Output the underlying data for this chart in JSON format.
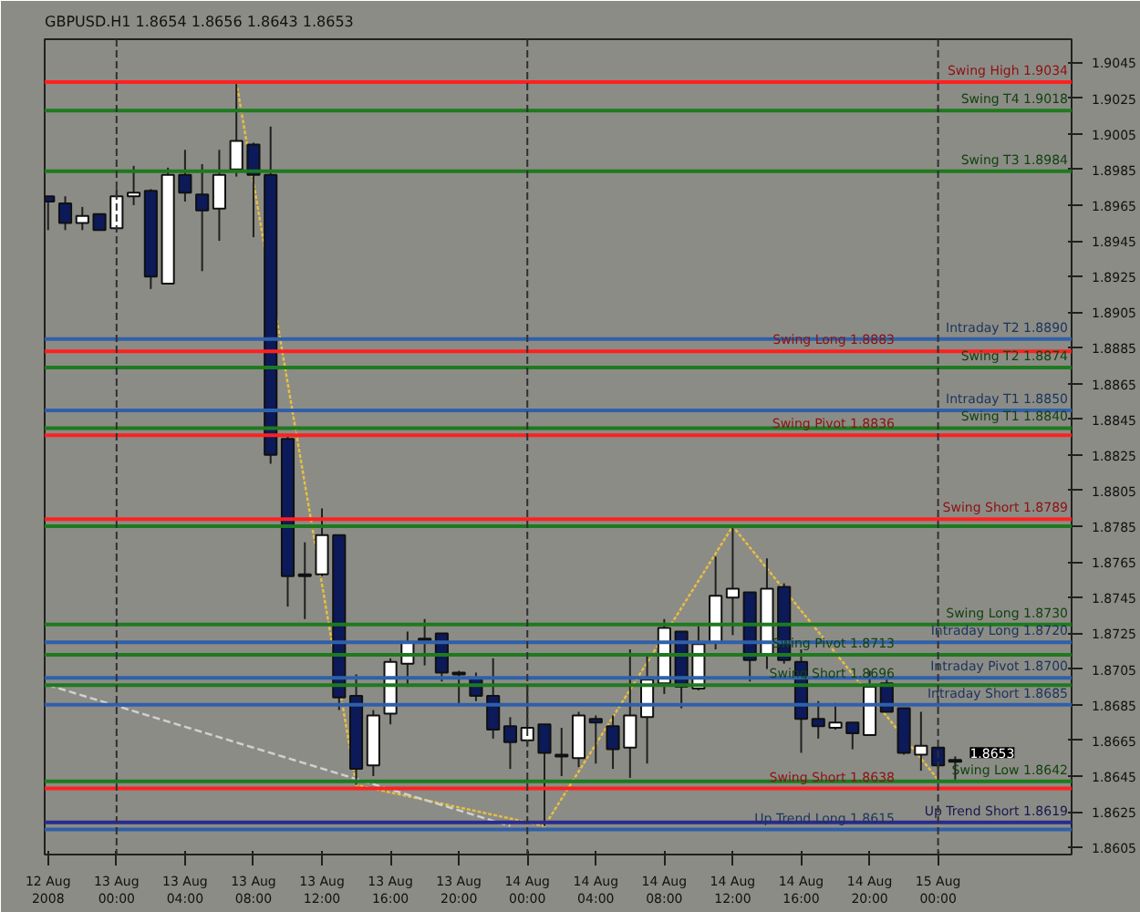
{
  "chart_data": {
    "type": "candlestick",
    "title": "GBPUSD.H1 1.8654 1.8656 1.8643 1.8653",
    "x": [
      "2008-08-12T20:00",
      "2008-08-12T21:00",
      "2008-08-12T22:00",
      "2008-08-12T23:00",
      "2008-08-13T00:00",
      "2008-08-13T01:00",
      "2008-08-13T02:00",
      "2008-08-13T03:00",
      "2008-08-13T04:00",
      "2008-08-13T05:00",
      "2008-08-13T06:00",
      "2008-08-13T07:00",
      "2008-08-13T08:00",
      "2008-08-13T09:00",
      "2008-08-13T10:00",
      "2008-08-13T11:00",
      "2008-08-13T12:00",
      "2008-08-13T13:00",
      "2008-08-13T14:00",
      "2008-08-13T15:00",
      "2008-08-13T16:00",
      "2008-08-13T17:00",
      "2008-08-13T18:00",
      "2008-08-13T19:00",
      "2008-08-13T20:00",
      "2008-08-13T21:00",
      "2008-08-13T22:00",
      "2008-08-13T23:00",
      "2008-08-14T00:00",
      "2008-08-14T01:00",
      "2008-08-14T02:00",
      "2008-08-14T03:00",
      "2008-08-14T04:00",
      "2008-08-14T05:00",
      "2008-08-14T06:00",
      "2008-08-14T07:00",
      "2008-08-14T08:00",
      "2008-08-14T09:00",
      "2008-08-14T10:00",
      "2008-08-14T11:00",
      "2008-08-14T12:00",
      "2008-08-14T13:00",
      "2008-08-14T14:00",
      "2008-08-14T15:00",
      "2008-08-14T16:00",
      "2008-08-14T17:00",
      "2008-08-14T18:00",
      "2008-08-14T19:00",
      "2008-08-14T20:00",
      "2008-08-14T21:00",
      "2008-08-14T22:00",
      "2008-08-14T23:00",
      "2008-08-15T00:00",
      "2008-08-15T01:00"
    ],
    "ohlc": [
      [
        1.897,
        1.897,
        1.8951,
        1.8967
      ],
      [
        1.8966,
        1.897,
        1.8951,
        1.8955
      ],
      [
        1.8955,
        1.8964,
        1.8951,
        1.8959
      ],
      [
        1.896,
        1.896,
        1.8951,
        1.8951
      ],
      [
        1.8952,
        1.8974,
        1.8951,
        1.897
      ],
      [
        1.897,
        1.8987,
        1.8965,
        1.8972
      ],
      [
        1.8973,
        1.8974,
        1.8918,
        1.8925
      ],
      [
        1.8921,
        1.8986,
        1.8921,
        1.8982
      ],
      [
        1.8982,
        1.8996,
        1.8967,
        1.8972
      ],
      [
        1.8971,
        1.8988,
        1.8928,
        1.8962
      ],
      [
        1.8963,
        1.8996,
        1.8945,
        1.8982
      ],
      [
        1.8985,
        1.9034,
        1.8981,
        1.9001
      ],
      [
        1.8999,
        1.9,
        1.8947,
        1.8982
      ],
      [
        1.8982,
        1.9009,
        1.882,
        1.8825
      ],
      [
        1.8834,
        1.8836,
        1.874,
        1.8757
      ],
      [
        1.8758,
        1.8776,
        1.8733,
        1.8757
      ],
      [
        1.8758,
        1.8795,
        1.8757,
        1.878
      ],
      [
        1.878,
        1.878,
        1.8682,
        1.8689
      ],
      [
        1.869,
        1.8702,
        1.864,
        1.8649
      ],
      [
        1.8651,
        1.8682,
        1.8645,
        1.8679
      ],
      [
        1.868,
        1.8711,
        1.8674,
        1.8709
      ],
      [
        1.8708,
        1.8726,
        1.8695,
        1.872
      ],
      [
        1.8722,
        1.8733,
        1.8707,
        1.8721
      ],
      [
        1.8725,
        1.8725,
        1.8698,
        1.8703
      ],
      [
        1.8703,
        1.8704,
        1.8685,
        1.8702
      ],
      [
        1.87,
        1.8703,
        1.8687,
        1.869
      ],
      [
        1.869,
        1.8711,
        1.8666,
        1.8671
      ],
      [
        1.8673,
        1.8678,
        1.8649,
        1.8664
      ],
      [
        1.8665,
        1.8695,
        1.8662,
        1.8672
      ],
      [
        1.8674,
        1.8674,
        1.8617,
        1.8658
      ],
      [
        1.8657,
        1.8672,
        1.8645,
        1.8656
      ],
      [
        1.8655,
        1.8681,
        1.865,
        1.8679
      ],
      [
        1.8677,
        1.8679,
        1.8652,
        1.8675
      ],
      [
        1.8673,
        1.8679,
        1.8649,
        1.866
      ],
      [
        1.8661,
        1.8716,
        1.8644,
        1.8679
      ],
      [
        1.8678,
        1.8713,
        1.8652,
        1.8699
      ],
      [
        1.8697,
        1.8733,
        1.8691,
        1.8728
      ],
      [
        1.8726,
        1.8726,
        1.8683,
        1.8695
      ],
      [
        1.8694,
        1.8729,
        1.8693,
        1.8719
      ],
      [
        1.872,
        1.8768,
        1.8716,
        1.8746
      ],
      [
        1.8745,
        1.8785,
        1.8724,
        1.875
      ],
      [
        1.8748,
        1.8748,
        1.8698,
        1.871
      ],
      [
        1.8713,
        1.8767,
        1.8705,
        1.875
      ],
      [
        1.8751,
        1.8753,
        1.8708,
        1.871
      ],
      [
        1.8709,
        1.8716,
        1.8658,
        1.8677
      ],
      [
        1.8677,
        1.8687,
        1.8666,
        1.8673
      ],
      [
        1.8672,
        1.8686,
        1.8671,
        1.8675
      ],
      [
        1.8675,
        1.8675,
        1.866,
        1.8669
      ],
      [
        1.8668,
        1.8704,
        1.8668,
        1.8695
      ],
      [
        1.8697,
        1.8699,
        1.8681,
        1.8681
      ],
      [
        1.8683,
        1.8683,
        1.8657,
        1.8658
      ],
      [
        1.8657,
        1.8681,
        1.8648,
        1.8662
      ],
      [
        1.8661,
        1.8661,
        1.8643,
        1.8651
      ],
      [
        1.8654,
        1.8656,
        1.8643,
        1.8653
      ]
    ],
    "colors": [
      "#0c1a5a",
      "#0c1a5a",
      "#ffffff",
      "#0c1a5a",
      "#ffffff",
      "#ffffff",
      "#0c1a5a",
      "#ffffff",
      "#0c1a5a",
      "#0c1a5a",
      "#ffffff",
      "#ffffff",
      "#0c1a5a",
      "#0c1a5a",
      "#0c1a5a",
      "#0c1a5a",
      "#ffffff",
      "#0c1a5a",
      "#0c1a5a",
      "#ffffff",
      "#ffffff",
      "#ffffff",
      "#0c1a5a",
      "#0c1a5a",
      "#0c1a5a",
      "#0c1a5a",
      "#0c1a5a",
      "#0c1a5a",
      "#ffffff",
      "#0c1a5a",
      "#0c1a5a",
      "#ffffff",
      "#0c1a5a",
      "#0c1a5a",
      "#ffffff",
      "#ffffff",
      "#ffffff",
      "#0c1a5a",
      "#ffffff",
      "#ffffff",
      "#ffffff",
      "#0c1a5a",
      "#ffffff",
      "#0c1a5a",
      "#0c1a5a",
      "#0c1a5a",
      "#ffffff",
      "#0c1a5a",
      "#ffffff",
      "#0c1a5a",
      "#0c1a5a",
      "#ffffff",
      "#0c1a5a",
      "#0c1a5a"
    ],
    "series": [
      {
        "type": "line",
        "x": [
          "2008-08-13T07:00",
          "2008-08-13T14:00",
          "2008-08-14T01:00",
          "2008-08-14T12:00",
          "2008-08-15T00:00"
        ],
        "values": [
          1.9034,
          1.864,
          1.8617,
          1.8785,
          1.8643
        ],
        "color": "#e8c040",
        "line_style": "dotted"
      },
      {
        "type": "line",
        "x": [
          "2008-08-12T20:00",
          "2008-08-13T23:00"
        ],
        "values": [
          1.8696,
          1.8617
        ],
        "color": "#d0d0d0",
        "line_style": "dashed"
      }
    ],
    "ref_lines": [
      {
        "axis": "y",
        "value": 1.9034,
        "label": "Swing High 1.9034",
        "color": "#ff2020"
      },
      {
        "axis": "y",
        "value": 1.9018,
        "label": "Swing T4 1.9018",
        "color": "#1e7a1e"
      },
      {
        "axis": "y",
        "value": 1.8984,
        "label": "Swing T3 1.8984",
        "color": "#1e7a1e"
      },
      {
        "axis": "y",
        "value": 1.889,
        "label": "Intraday T2 1.8890",
        "color": "#3060a8"
      },
      {
        "axis": "y",
        "value": 1.8883,
        "label": "Swing Long 1.8883",
        "color": "#ff2020"
      },
      {
        "axis": "y",
        "value": 1.8874,
        "label": "Swing T2 1.8874",
        "color": "#1e7a1e"
      },
      {
        "axis": "y",
        "value": 1.885,
        "label": "Intraday T1 1.8850",
        "color": "#3060a8"
      },
      {
        "axis": "y",
        "value": 1.884,
        "label": "Swing T1 1.8840",
        "color": "#1e7a1e"
      },
      {
        "axis": "y",
        "value": 1.8836,
        "label": "Swing Pivot 1.8836",
        "color": "#ff2020"
      },
      {
        "axis": "y",
        "value": 1.8789,
        "label": "Swing Short 1.8789",
        "color": "#ff2020"
      },
      {
        "axis": "y",
        "value": 1.8785,
        "label": null,
        "color": "#1e7a1e"
      },
      {
        "axis": "y",
        "value": 1.873,
        "label": "Swing Long 1.8730",
        "color": "#1e7a1e"
      },
      {
        "axis": "y",
        "value": 1.872,
        "label": "Intraday Long 1.8720",
        "color": "#3060a8"
      },
      {
        "axis": "y",
        "value": 1.8713,
        "label": "Swing Pivot 1.8713",
        "color": "#1e7a1e"
      },
      {
        "axis": "y",
        "value": 1.87,
        "label": "Intraday Pivot 1.8700",
        "color": "#3060a8"
      },
      {
        "axis": "y",
        "value": 1.8696,
        "label": "Swing Short 1.8696",
        "color": "#1e7a1e"
      },
      {
        "axis": "y",
        "value": 1.8685,
        "label": "Intraday Short 1.8685",
        "color": "#3060a8"
      },
      {
        "axis": "y",
        "value": 1.8642,
        "label": "Swing Low 1.8642",
        "color": "#1e7a1e"
      },
      {
        "axis": "y",
        "value": 1.8638,
        "label": "Swing Short 1.8638",
        "color": "#ff2020"
      },
      {
        "axis": "y",
        "value": 1.8619,
        "label": "Up Trend Short 1.8619",
        "color": "#2a2a90"
      },
      {
        "axis": "y",
        "value": 1.8615,
        "label": "Up Trend Long 1.8615",
        "color": "#3060a8"
      },
      {
        "axis": "x",
        "value": "2008-08-13T00:00",
        "label": null,
        "color": "#303030",
        "line_style": "dashed"
      },
      {
        "axis": "x",
        "value": "2008-08-14T00:00",
        "label": null,
        "color": "#303030",
        "line_style": "dashed"
      },
      {
        "axis": "x",
        "value": "2008-08-15T00:00",
        "label": null,
        "color": "#303030",
        "line_style": "dashed"
      }
    ],
    "annotations": [
      {
        "text": "1.8653",
        "x": "2008-08-15T01:00",
        "y": 1.8653
      }
    ],
    "xlim": [
      "2008-08-12T19:48",
      "2008-08-15T07:48"
    ],
    "xticks": [
      {
        "value": "2008-08-12T20:00",
        "label": "12 Aug 2008"
      },
      {
        "value": "2008-08-13T00:00",
        "label": "13 Aug 00:00"
      },
      {
        "value": "2008-08-13T04:00",
        "label": "13 Aug 04:00"
      },
      {
        "value": "2008-08-13T08:00",
        "label": "13 Aug 08:00"
      },
      {
        "value": "2008-08-13T12:00",
        "label": "13 Aug 12:00"
      },
      {
        "value": "2008-08-13T16:00",
        "label": "13 Aug 16:00"
      },
      {
        "value": "2008-08-13T20:00",
        "label": "13 Aug 20:00"
      },
      {
        "value": "2008-08-14T00:00",
        "label": "14 Aug 00:00"
      },
      {
        "value": "2008-08-14T04:00",
        "label": "14 Aug 04:00"
      },
      {
        "value": "2008-08-14T08:00",
        "label": "14 Aug 08:00"
      },
      {
        "value": "2008-08-14T12:00",
        "label": "14 Aug 12:00"
      },
      {
        "value": "2008-08-14T16:00",
        "label": "14 Aug 16:00"
      },
      {
        "value": "2008-08-14T20:00",
        "label": "14 Aug 20:00"
      },
      {
        "value": "2008-08-15T00:00",
        "label": "15 Aug 00:00"
      }
    ],
    "ylim": [
      1.8601,
      1.9058
    ],
    "yticks": [
      1.9045,
      1.9025,
      1.9005,
      1.8985,
      1.8965,
      1.8945,
      1.8925,
      1.8905,
      1.8885,
      1.8865,
      1.8845,
      1.8825,
      1.8805,
      1.8785,
      1.8765,
      1.8745,
      1.8725,
      1.8705,
      1.8685,
      1.8665,
      1.8645,
      1.8625,
      1.8605
    ],
    "grid": false
  }
}
